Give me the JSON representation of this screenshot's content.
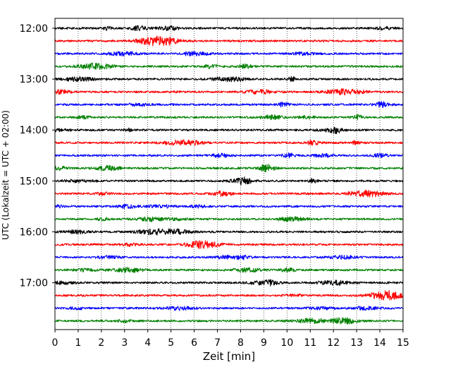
{
  "chart_data": {
    "type": "line",
    "title": "",
    "xlabel": "Zeit  [min]",
    "ylabel": "UTC (Lokalzeit = UTC + 02:00)",
    "xlim": [
      0,
      15
    ],
    "x_ticks": [
      "0",
      "1",
      "2",
      "3",
      "4",
      "5",
      "6",
      "7",
      "8",
      "9",
      "10",
      "11",
      "12",
      "13",
      "14",
      "15"
    ],
    "y_ticks": [
      "12:00",
      "13:00",
      "14:00",
      "15:00",
      "16:00",
      "17:00"
    ],
    "grid": "vertical-dotted",
    "legend": "none",
    "trace_interval_minutes": 15,
    "start_time": "12:00",
    "end_time": "17:45",
    "trace_colors": [
      "#000000",
      "#ff0000",
      "#0000ff",
      "#008000"
    ],
    "series": [
      {
        "start": "12:00",
        "color": "#000000"
      },
      {
        "start": "12:15",
        "color": "#ff0000"
      },
      {
        "start": "12:30",
        "color": "#0000ff"
      },
      {
        "start": "12:45",
        "color": "#008000"
      },
      {
        "start": "13:00",
        "color": "#000000"
      },
      {
        "start": "13:15",
        "color": "#ff0000"
      },
      {
        "start": "13:30",
        "color": "#0000ff"
      },
      {
        "start": "13:45",
        "color": "#008000"
      },
      {
        "start": "14:00",
        "color": "#000000"
      },
      {
        "start": "14:15",
        "color": "#ff0000"
      },
      {
        "start": "14:30",
        "color": "#0000ff"
      },
      {
        "start": "14:45",
        "color": "#008000"
      },
      {
        "start": "15:00",
        "color": "#000000"
      },
      {
        "start": "15:15",
        "color": "#ff0000"
      },
      {
        "start": "15:30",
        "color": "#0000ff"
      },
      {
        "start": "15:45",
        "color": "#008000"
      },
      {
        "start": "16:00",
        "color": "#000000"
      },
      {
        "start": "16:15",
        "color": "#ff0000"
      },
      {
        "start": "16:30",
        "color": "#0000ff"
      },
      {
        "start": "16:45",
        "color": "#008000"
      },
      {
        "start": "17:00",
        "color": "#000000"
      },
      {
        "start": "17:15",
        "color": "#ff0000"
      },
      {
        "start": "17:30",
        "color": "#0000ff"
      },
      {
        "start": "17:45",
        "color": "#008000"
      }
    ]
  }
}
